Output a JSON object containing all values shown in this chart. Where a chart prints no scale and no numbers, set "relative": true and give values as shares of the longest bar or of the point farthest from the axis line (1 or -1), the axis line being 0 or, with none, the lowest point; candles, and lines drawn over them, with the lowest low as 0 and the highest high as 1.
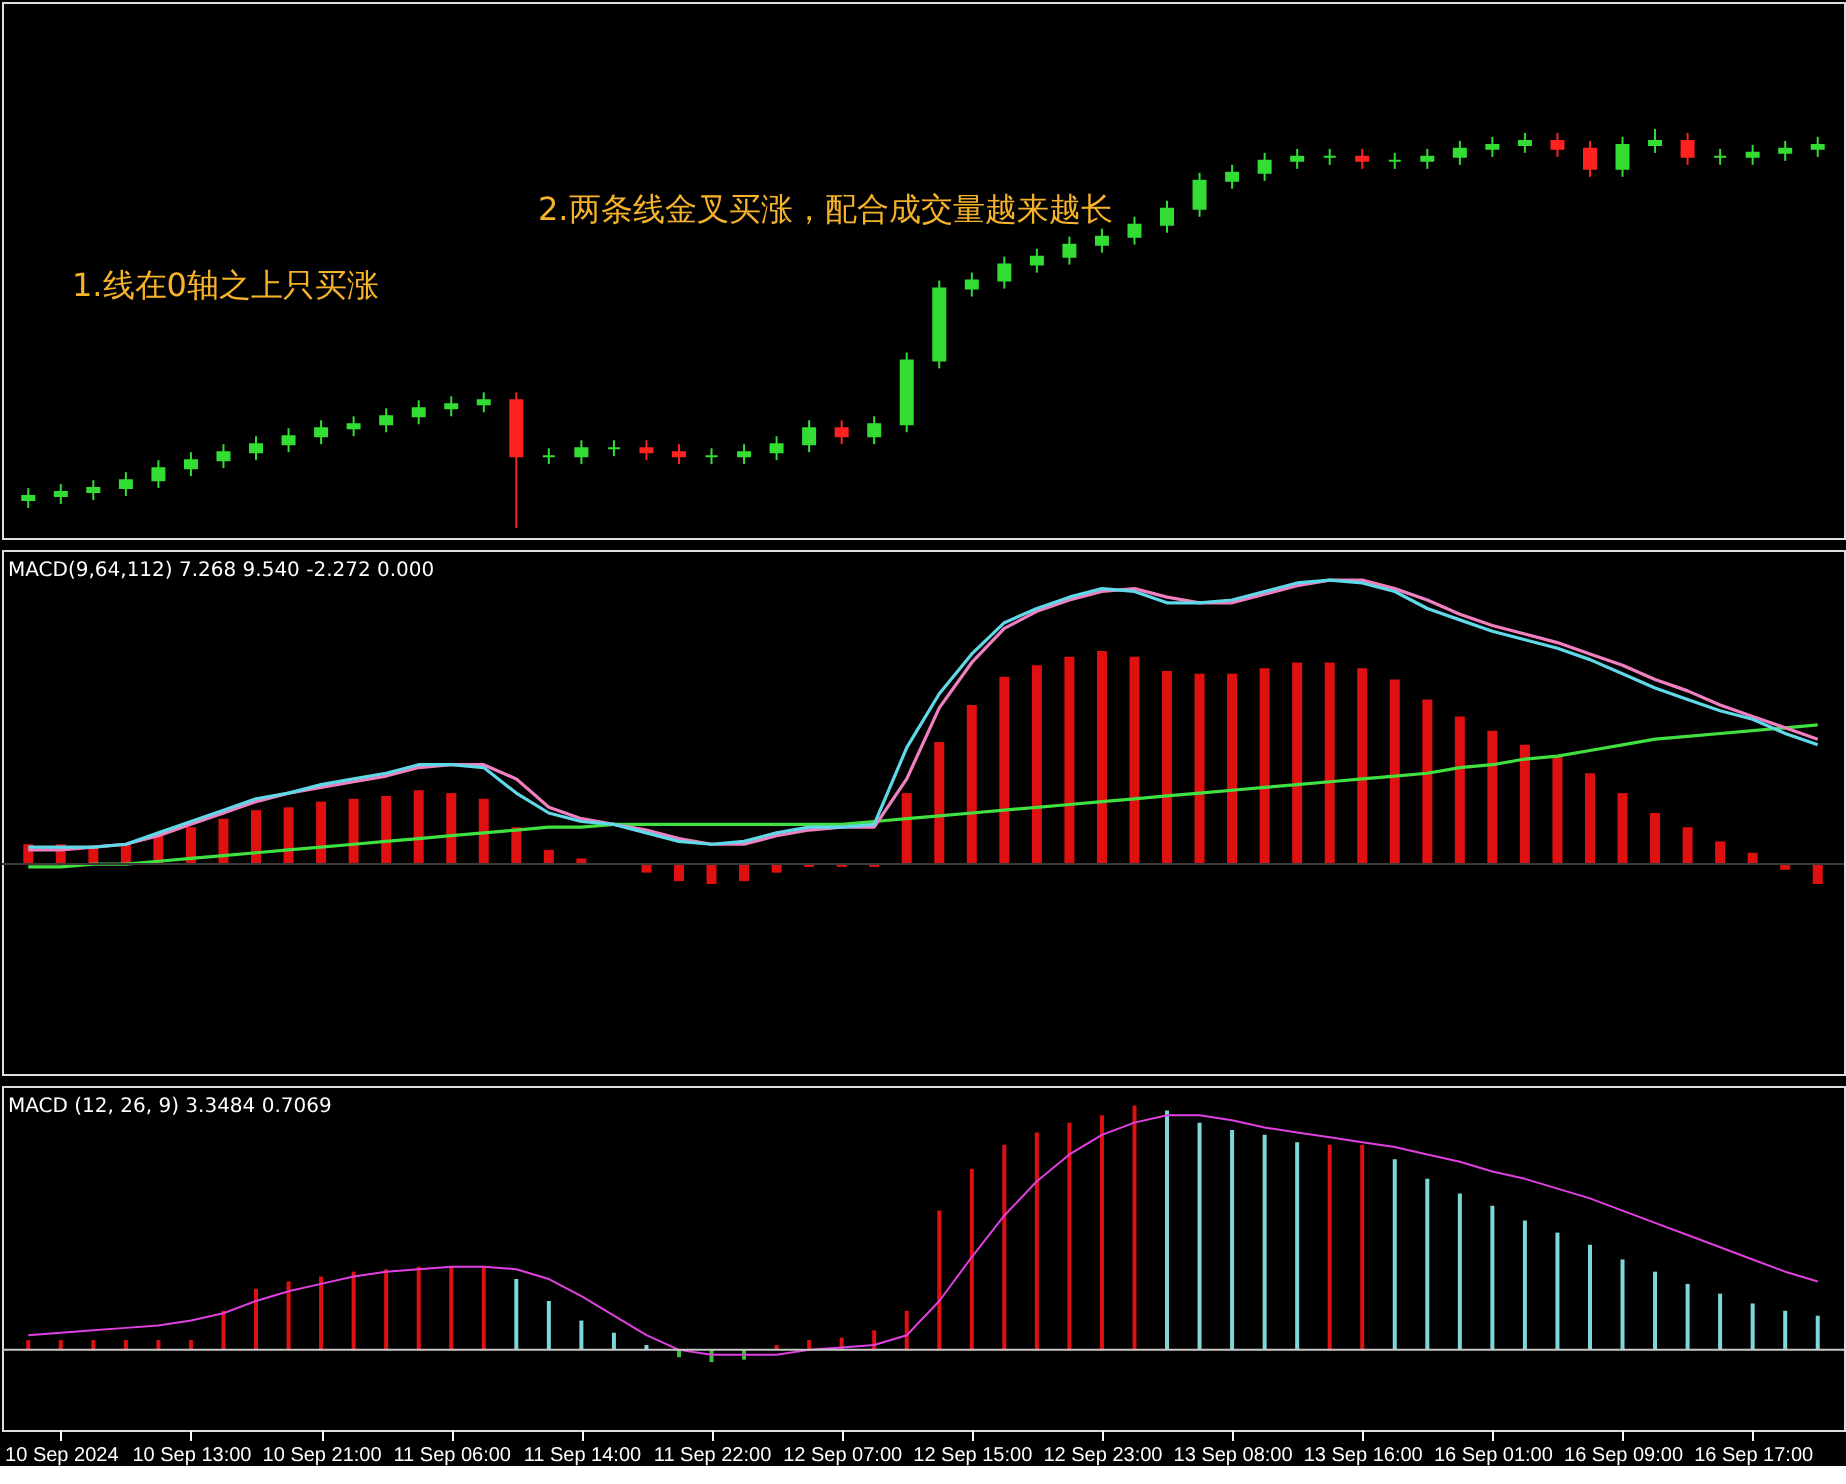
{
  "chart_data": [
    {
      "type": "candlestick",
      "relative": true,
      "tick_labels": false,
      "annotations": [
        "1.线在0轴之上只买涨",
        "2.两条线金叉买涨，配合成交量越来越长"
      ],
      "categories": [
        null,
        null,
        null,
        null,
        null,
        null,
        null,
        null,
        null,
        null,
        null,
        null,
        null,
        null,
        null,
        null,
        null,
        null,
        null,
        null,
        null,
        null,
        null,
        null,
        null,
        null,
        null,
        null,
        null,
        null,
        null,
        null,
        null,
        null,
        null,
        null,
        null,
        null,
        null,
        null,
        null,
        null,
        null,
        null,
        null,
        null,
        null,
        null,
        null,
        null,
        null,
        null,
        null,
        null,
        null,
        null
      ],
      "ohlc": [
        [
          0.07,
          0.1,
          0.05,
          0.08
        ],
        [
          0.08,
          0.11,
          0.06,
          0.09
        ],
        [
          0.09,
          0.12,
          0.07,
          0.1
        ],
        [
          0.1,
          0.14,
          0.08,
          0.12
        ],
        [
          0.12,
          0.17,
          0.1,
          0.15
        ],
        [
          0.15,
          0.19,
          0.13,
          0.17
        ],
        [
          0.17,
          0.21,
          0.15,
          0.19
        ],
        [
          0.19,
          0.23,
          0.17,
          0.21
        ],
        [
          0.21,
          0.25,
          0.19,
          0.23
        ],
        [
          0.23,
          0.27,
          0.21,
          0.25
        ],
        [
          0.25,
          0.28,
          0.23,
          0.26
        ],
        [
          0.26,
          0.3,
          0.24,
          0.28
        ],
        [
          0.28,
          0.32,
          0.26,
          0.3
        ],
        [
          0.3,
          0.33,
          0.28,
          0.31
        ],
        [
          0.31,
          0.34,
          0.29,
          0.32
        ],
        [
          0.32,
          0.34,
          0.0,
          0.18
        ],
        [
          0.18,
          0.2,
          0.16,
          0.18
        ],
        [
          0.18,
          0.22,
          0.16,
          0.2
        ],
        [
          0.2,
          0.22,
          0.18,
          0.2
        ],
        [
          0.2,
          0.22,
          0.17,
          0.19
        ],
        [
          0.19,
          0.21,
          0.16,
          0.18
        ],
        [
          0.18,
          0.2,
          0.16,
          0.18
        ],
        [
          0.18,
          0.21,
          0.16,
          0.19
        ],
        [
          0.19,
          0.23,
          0.17,
          0.21
        ],
        [
          0.21,
          0.27,
          0.19,
          0.25
        ],
        [
          0.25,
          0.27,
          0.21,
          0.23
        ],
        [
          0.23,
          0.28,
          0.21,
          0.26
        ],
        [
          0.26,
          0.44,
          0.24,
          0.42
        ],
        [
          0.42,
          0.62,
          0.4,
          0.6
        ],
        [
          0.6,
          0.64,
          0.58,
          0.62
        ],
        [
          0.62,
          0.68,
          0.6,
          0.66
        ],
        [
          0.66,
          0.7,
          0.64,
          0.68
        ],
        [
          0.68,
          0.73,
          0.66,
          0.71
        ],
        [
          0.71,
          0.75,
          0.69,
          0.73
        ],
        [
          0.73,
          0.78,
          0.71,
          0.76
        ],
        [
          0.76,
          0.82,
          0.74,
          0.8
        ],
        [
          0.8,
          0.89,
          0.78,
          0.87
        ],
        [
          0.87,
          0.91,
          0.85,
          0.89
        ],
        [
          0.89,
          0.94,
          0.87,
          0.92
        ],
        [
          0.92,
          0.95,
          0.9,
          0.93
        ],
        [
          0.93,
          0.95,
          0.91,
          0.93
        ],
        [
          0.93,
          0.95,
          0.9,
          0.92
        ],
        [
          0.92,
          0.94,
          0.9,
          0.92
        ],
        [
          0.92,
          0.95,
          0.9,
          0.93
        ],
        [
          0.93,
          0.97,
          0.91,
          0.95
        ],
        [
          0.95,
          0.98,
          0.93,
          0.96
        ],
        [
          0.96,
          0.99,
          0.94,
          0.97
        ],
        [
          0.97,
          0.99,
          0.93,
          0.95
        ],
        [
          0.95,
          0.97,
          0.88,
          0.9
        ],
        [
          0.9,
          0.98,
          0.88,
          0.96
        ],
        [
          0.96,
          1.0,
          0.94,
          0.97
        ],
        [
          0.97,
          0.99,
          0.91,
          0.93
        ],
        [
          0.93,
          0.95,
          0.91,
          0.93
        ],
        [
          0.93,
          0.96,
          0.91,
          0.94
        ],
        [
          0.94,
          0.97,
          0.92,
          0.95
        ],
        [
          0.95,
          0.98,
          0.93,
          0.96
        ]
      ],
      "colors": [
        "#33dd33",
        "#33dd33",
        "#33dd33",
        "#33dd33",
        "#33dd33",
        "#33dd33",
        "#33dd33",
        "#33dd33",
        "#33dd33",
        "#33dd33",
        "#33dd33",
        "#33dd33",
        "#33dd33",
        "#33dd33",
        "#33dd33",
        "#ff2020",
        "#33dd33",
        "#33dd33",
        "#33dd33",
        "#ff2020",
        "#ff2020",
        "#33dd33",
        "#33dd33",
        "#33dd33",
        "#33dd33",
        "#ff2020",
        "#33dd33",
        "#33dd33",
        "#33dd33",
        "#33dd33",
        "#33dd33",
        "#33dd33",
        "#33dd33",
        "#33dd33",
        "#33dd33",
        "#33dd33",
        "#33dd33",
        "#33dd33",
        "#33dd33",
        "#33dd33",
        "#33dd33",
        "#ff2020",
        "#33dd33",
        "#33dd33",
        "#33dd33",
        "#33dd33",
        "#33dd33",
        "#ff2020",
        "#ff2020",
        "#33dd33",
        "#33dd33",
        "#ff2020",
        "#33dd33",
        "#33dd33",
        "#33dd33",
        "#33dd33"
      ]
    },
    {
      "type": "bar",
      "relative": true,
      "tick_labels": false,
      "title": "MACD(9,64,112) 7.268 9.540 -2.272 0.000",
      "ref_lines": [
        {
          "axis": "y",
          "value": 0,
          "color": "#3a3a3a"
        }
      ],
      "categories": [
        null,
        null,
        null,
        null,
        null,
        null,
        null,
        null,
        null,
        null,
        null,
        null,
        null,
        null,
        null,
        null,
        null,
        null,
        null,
        null,
        null,
        null,
        null,
        null,
        null,
        null,
        null,
        null,
        null,
        null,
        null,
        null,
        null,
        null,
        null,
        null,
        null,
        null,
        null,
        null,
        null,
        null,
        null,
        null,
        null,
        null,
        null,
        null,
        null,
        null,
        null,
        null,
        null,
        null,
        null,
        null
      ],
      "series": [
        {
          "type": "bar",
          "color": "#e01010",
          "values": [
            0.07,
            0.07,
            0.06,
            0.07,
            0.1,
            0.13,
            0.16,
            0.19,
            0.2,
            0.22,
            0.23,
            0.24,
            0.26,
            0.25,
            0.23,
            0.13,
            0.05,
            0.02,
            0.0,
            -0.03,
            -0.06,
            -0.07,
            -0.06,
            -0.03,
            -0.01,
            -0.01,
            -0.01,
            0.25,
            0.43,
            0.56,
            0.66,
            0.7,
            0.73,
            0.75,
            0.73,
            0.68,
            0.67,
            0.67,
            0.69,
            0.71,
            0.71,
            0.69,
            0.65,
            0.58,
            0.52,
            0.47,
            0.42,
            0.38,
            0.32,
            0.25,
            0.18,
            0.13,
            0.08,
            0.04,
            -0.02,
            -0.07
          ]
        },
        {
          "type": "line",
          "color": "#40e040",
          "values": [
            -0.01,
            -0.01,
            0.0,
            0.0,
            0.01,
            0.02,
            0.03,
            0.04,
            0.05,
            0.06,
            0.07,
            0.08,
            0.09,
            0.1,
            0.11,
            0.12,
            0.13,
            0.13,
            0.14,
            0.14,
            0.14,
            0.14,
            0.14,
            0.14,
            0.14,
            0.14,
            0.15,
            0.16,
            0.17,
            0.18,
            0.19,
            0.2,
            0.21,
            0.22,
            0.23,
            0.24,
            0.25,
            0.26,
            0.27,
            0.28,
            0.29,
            0.3,
            0.31,
            0.32,
            0.34,
            0.35,
            0.37,
            0.38,
            0.4,
            0.42,
            0.44,
            0.45,
            0.46,
            0.47,
            0.48,
            0.49
          ]
        },
        {
          "type": "line",
          "color": "#f080c0",
          "values": [
            0.05,
            0.05,
            0.06,
            0.07,
            0.1,
            0.14,
            0.18,
            0.22,
            0.25,
            0.27,
            0.29,
            0.31,
            0.34,
            0.35,
            0.35,
            0.3,
            0.2,
            0.16,
            0.14,
            0.12,
            0.09,
            0.07,
            0.07,
            0.1,
            0.12,
            0.13,
            0.13,
            0.3,
            0.55,
            0.71,
            0.83,
            0.89,
            0.93,
            0.96,
            0.97,
            0.94,
            0.92,
            0.92,
            0.95,
            0.98,
            1.0,
            1.0,
            0.97,
            0.93,
            0.88,
            0.84,
            0.81,
            0.78,
            0.74,
            0.7,
            0.65,
            0.61,
            0.56,
            0.52,
            0.48,
            0.44
          ]
        },
        {
          "type": "line",
          "color": "#5fd8e8",
          "values": [
            0.06,
            0.06,
            0.06,
            0.07,
            0.11,
            0.15,
            0.19,
            0.23,
            0.25,
            0.28,
            0.3,
            0.32,
            0.35,
            0.35,
            0.34,
            0.25,
            0.18,
            0.15,
            0.14,
            0.11,
            0.08,
            0.07,
            0.08,
            0.11,
            0.13,
            0.13,
            0.14,
            0.41,
            0.6,
            0.74,
            0.85,
            0.9,
            0.94,
            0.97,
            0.96,
            0.92,
            0.92,
            0.93,
            0.96,
            0.99,
            1.0,
            0.99,
            0.96,
            0.9,
            0.86,
            0.82,
            0.79,
            0.76,
            0.72,
            0.67,
            0.62,
            0.58,
            0.54,
            0.51,
            0.46,
            0.42
          ]
        }
      ]
    },
    {
      "type": "bar",
      "relative": true,
      "tick_labels": "x",
      "title": "MACD (12, 26, 9)  3.3484 0.7069",
      "categories": [
        null,
        "10 Sep 2024",
        null,
        null,
        null,
        "10 Sep 13:00",
        null,
        null,
        null,
        "10 Sep 21:00",
        null,
        null,
        null,
        "11 Sep 06:00",
        null,
        null,
        null,
        "11 Sep 14:00",
        null,
        null,
        null,
        "11 Sep 22:00",
        null,
        null,
        null,
        "12 Sep 07:00",
        null,
        null,
        null,
        "12 Sep 15:00",
        null,
        null,
        null,
        "12 Sep 23:00",
        null,
        null,
        null,
        "13 Sep 08:00",
        null,
        null,
        null,
        "13 Sep 16:00",
        null,
        null,
        null,
        "16 Sep 01:00",
        null,
        null,
        null,
        "16 Sep 09:00",
        null,
        null,
        null,
        "16 Sep 17:00",
        null,
        null
      ],
      "ref_lines": [
        {
          "axis": "y",
          "value": 0,
          "color": "#c8c8c8"
        }
      ],
      "series": [
        {
          "type": "bar",
          "values": [
            0.04,
            0.04,
            0.04,
            0.04,
            0.04,
            0.04,
            0.16,
            0.25,
            0.28,
            0.3,
            0.32,
            0.33,
            0.34,
            0.34,
            0.34,
            0.29,
            0.2,
            0.12,
            0.07,
            0.02,
            -0.03,
            -0.05,
            -0.04,
            0.02,
            0.04,
            0.05,
            0.08,
            0.16,
            0.57,
            0.74,
            0.84,
            0.89,
            0.93,
            0.96,
            1.0,
            0.98,
            0.93,
            0.9,
            0.88,
            0.85,
            0.84,
            0.84,
            0.78,
            0.7,
            0.64,
            0.59,
            0.53,
            0.48,
            0.43,
            0.37,
            0.32,
            0.27,
            0.23,
            0.19,
            0.16,
            0.14
          ],
          "colors": [
            "#e01010",
            "#e01010",
            "#e01010",
            "#e01010",
            "#e01010",
            "#e01010",
            "#e01010",
            "#e01010",
            "#e01010",
            "#e01010",
            "#e01010",
            "#e01010",
            "#e01010",
            "#e01010",
            "#e01010",
            "#7fd8d8",
            "#7fd8d8",
            "#7fd8d8",
            "#7fd8d8",
            "#7fd8d8",
            "#40c040",
            "#40c040",
            "#40c040",
            "#e01010",
            "#e01010",
            "#e01010",
            "#e01010",
            "#e01010",
            "#e01010",
            "#e01010",
            "#e01010",
            "#e01010",
            "#e01010",
            "#e01010",
            "#e01010",
            "#7fd8d8",
            "#7fd8d8",
            "#7fd8d8",
            "#7fd8d8",
            "#7fd8d8",
            "#e01010",
            "#e01010",
            "#7fd8d8",
            "#7fd8d8",
            "#7fd8d8",
            "#7fd8d8",
            "#7fd8d8",
            "#7fd8d8",
            "#7fd8d8",
            "#7fd8d8",
            "#7fd8d8",
            "#7fd8d8",
            "#7fd8d8",
            "#7fd8d8",
            "#7fd8d8",
            "#7fd8d8"
          ]
        },
        {
          "type": "line",
          "color": "#e040e0",
          "values": [
            0.06,
            0.07,
            0.08,
            0.09,
            0.1,
            0.12,
            0.15,
            0.2,
            0.24,
            0.27,
            0.3,
            0.32,
            0.33,
            0.34,
            0.34,
            0.33,
            0.29,
            0.22,
            0.14,
            0.06,
            0.0,
            -0.02,
            -0.02,
            -0.02,
            0.0,
            0.01,
            0.02,
            0.06,
            0.2,
            0.38,
            0.55,
            0.69,
            0.8,
            0.88,
            0.93,
            0.96,
            0.96,
            0.94,
            0.91,
            0.89,
            0.87,
            0.85,
            0.83,
            0.8,
            0.77,
            0.73,
            0.7,
            0.66,
            0.62,
            0.57,
            0.52,
            0.47,
            0.42,
            0.37,
            0.32,
            0.28
          ]
        }
      ]
    }
  ]
}
